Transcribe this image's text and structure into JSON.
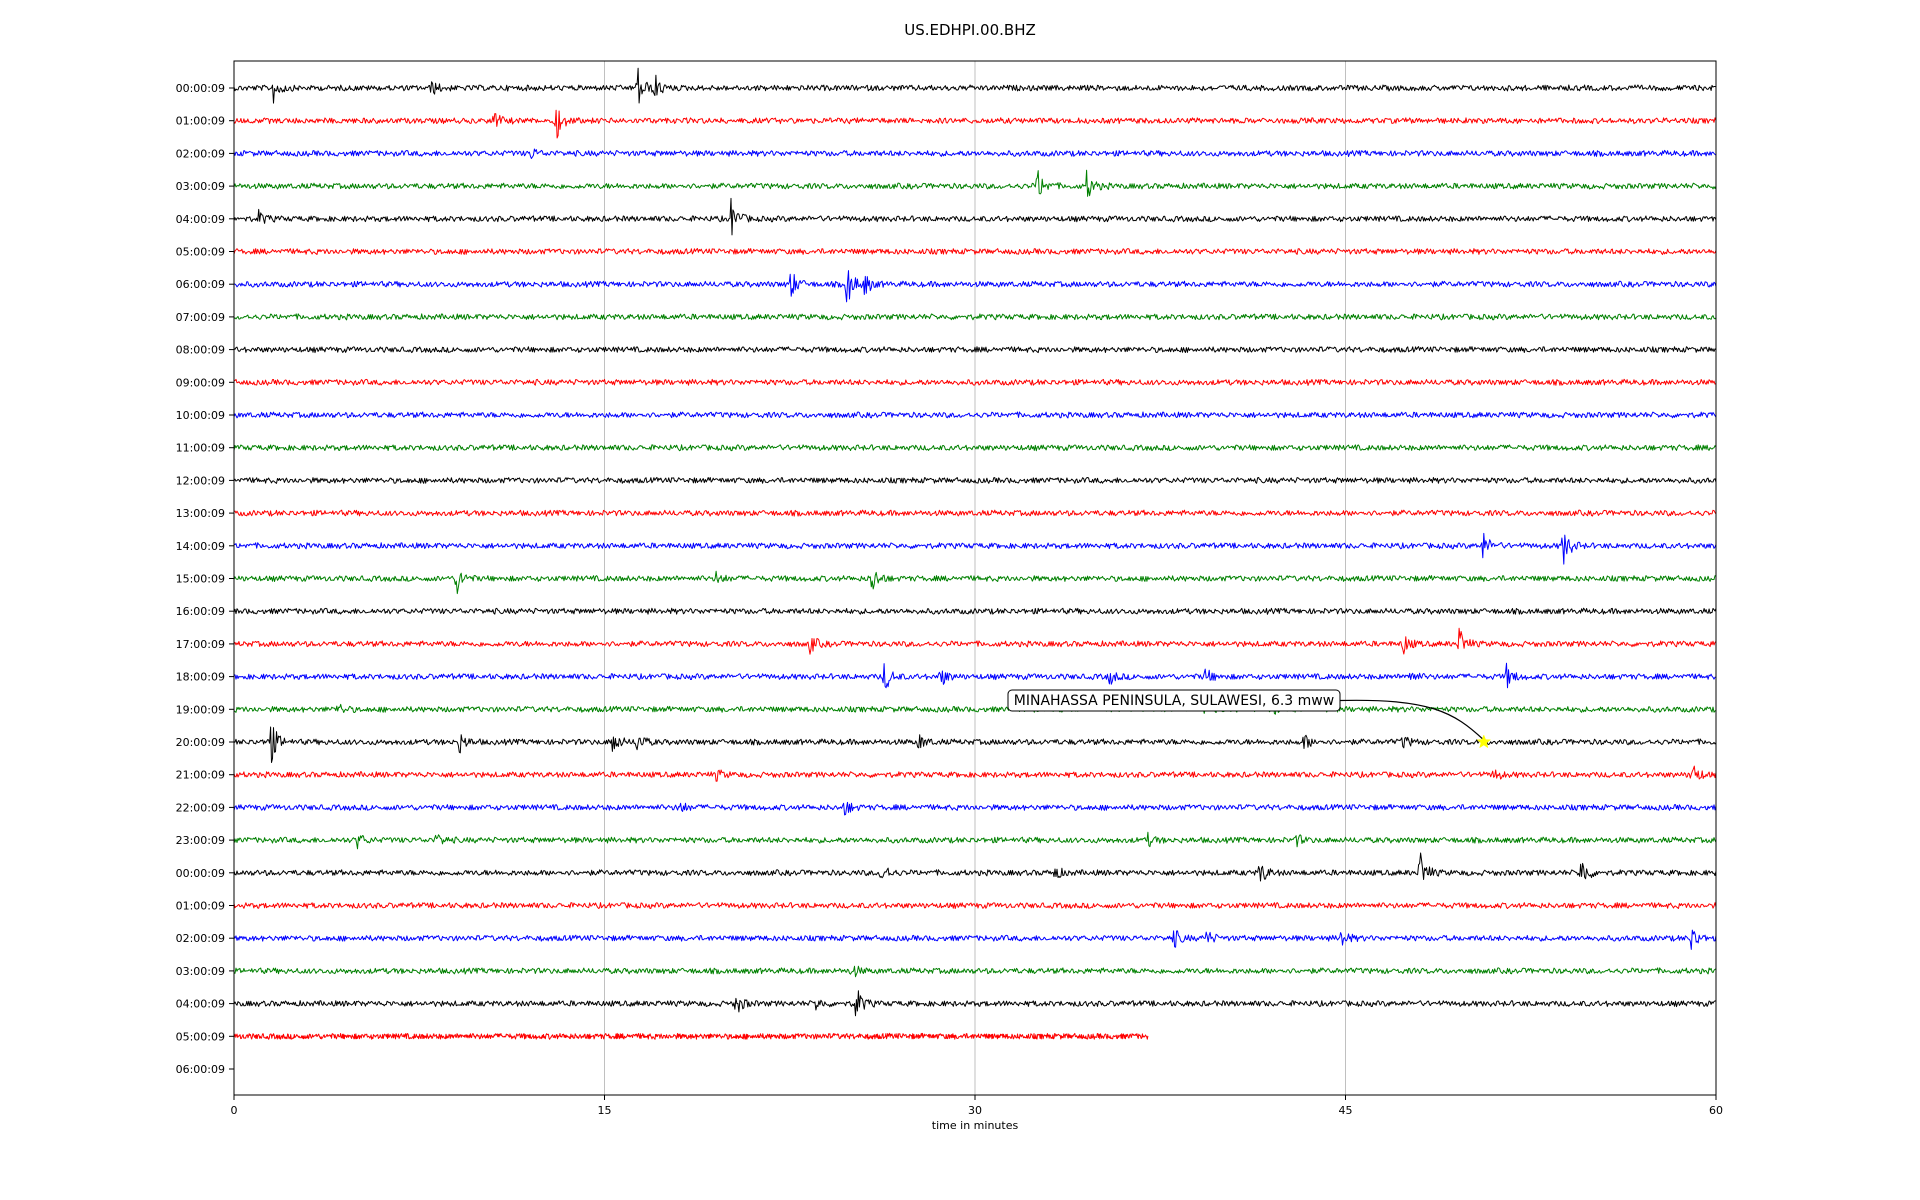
{
  "chart_data": {
    "type": "line",
    "title": "US.EDHPI.00.BHZ",
    "xlabel": "time in minutes",
    "ylabel": "",
    "xlim": [
      0,
      60
    ],
    "x_ticks": [
      0,
      15,
      30,
      45,
      60
    ],
    "x_grid": true,
    "y_grid": false,
    "row_labels": [
      "00:00:09",
      "01:00:09",
      "02:00:09",
      "03:00:09",
      "04:00:09",
      "05:00:09",
      "06:00:09",
      "07:00:09",
      "08:00:09",
      "09:00:09",
      "10:00:09",
      "11:00:09",
      "12:00:09",
      "13:00:09",
      "14:00:09",
      "15:00:09",
      "16:00:09",
      "17:00:09",
      "18:00:09",
      "19:00:09",
      "20:00:09",
      "21:00:09",
      "22:00:09",
      "23:00:09",
      "00:00:09",
      "01:00:09",
      "02:00:09",
      "03:00:09",
      "04:00:09",
      "05:00:09",
      "06:00:09"
    ],
    "trace_colors": [
      "#000000",
      "#ff0000",
      "#0000ff",
      "#008000"
    ],
    "traces": [
      {
        "row": 0,
        "end": 60,
        "events": [
          {
            "t": 1.6,
            "a": 1.0
          },
          {
            "t": 8.0,
            "a": 0.5
          },
          {
            "t": 16.3,
            "a": 1.8
          },
          {
            "t": 17.0,
            "a": 1.0
          }
        ]
      },
      {
        "row": 1,
        "end": 60,
        "events": [
          {
            "t": 10.5,
            "a": 0.7
          },
          {
            "t": 13.0,
            "a": 1.6
          }
        ]
      },
      {
        "row": 2,
        "end": 60,
        "events": [
          {
            "t": 12.0,
            "a": 0.4
          }
        ]
      },
      {
        "row": 3,
        "end": 60,
        "events": [
          {
            "t": 32.5,
            "a": 1.3
          },
          {
            "t": 34.5,
            "a": 1.1
          }
        ]
      },
      {
        "row": 4,
        "end": 60,
        "events": [
          {
            "t": 1.0,
            "a": 0.5
          },
          {
            "t": 20.1,
            "a": 1.5
          }
        ]
      },
      {
        "row": 5,
        "end": 60,
        "events": []
      },
      {
        "row": 6,
        "end": 60,
        "events": [
          {
            "t": 22.5,
            "a": 1.2
          },
          {
            "t": 24.8,
            "a": 1.6
          },
          {
            "t": 25.5,
            "a": 0.8
          }
        ]
      },
      {
        "row": 7,
        "end": 60,
        "events": []
      },
      {
        "row": 8,
        "end": 60,
        "events": []
      },
      {
        "row": 9,
        "end": 60,
        "events": []
      },
      {
        "row": 10,
        "end": 60,
        "events": []
      },
      {
        "row": 11,
        "end": 60,
        "events": []
      },
      {
        "row": 12,
        "end": 60,
        "events": []
      },
      {
        "row": 13,
        "end": 60,
        "events": []
      },
      {
        "row": 14,
        "end": 60,
        "events": [
          {
            "t": 50.5,
            "a": 1.2
          },
          {
            "t": 53.8,
            "a": 1.4
          }
        ]
      },
      {
        "row": 15,
        "end": 60,
        "events": [
          {
            "t": 9.0,
            "a": 1.1
          },
          {
            "t": 19.5,
            "a": 0.5
          },
          {
            "t": 25.8,
            "a": 1.1
          }
        ]
      },
      {
        "row": 16,
        "end": 60,
        "events": []
      },
      {
        "row": 17,
        "end": 60,
        "events": [
          {
            "t": 23.3,
            "a": 0.7
          },
          {
            "t": 47.3,
            "a": 0.8
          },
          {
            "t": 49.6,
            "a": 1.1
          }
        ]
      },
      {
        "row": 18,
        "end": 60,
        "events": [
          {
            "t": 26.3,
            "a": 1.2
          },
          {
            "t": 28.6,
            "a": 0.7
          },
          {
            "t": 35.4,
            "a": 0.6
          },
          {
            "t": 39.3,
            "a": 0.6
          },
          {
            "t": 47.5,
            "a": 0.6
          },
          {
            "t": 51.5,
            "a": 0.9
          }
        ]
      },
      {
        "row": 19,
        "end": 60,
        "events": [
          {
            "t": 4.2,
            "a": 0.4
          },
          {
            "t": 39.0,
            "a": 0.7
          },
          {
            "t": 42.0,
            "a": 0.5
          }
        ]
      },
      {
        "row": 20,
        "end": 60,
        "events": [
          {
            "t": 1.4,
            "a": 2.3
          },
          {
            "t": 9.1,
            "a": 0.8
          },
          {
            "t": 15.3,
            "a": 0.9
          },
          {
            "t": 16.3,
            "a": 0.8
          },
          {
            "t": 27.7,
            "a": 0.6
          },
          {
            "t": 43.3,
            "a": 0.6
          },
          {
            "t": 47.3,
            "a": 0.5
          }
        ]
      },
      {
        "row": 21,
        "end": 60,
        "events": [
          {
            "t": 19.5,
            "a": 0.4
          },
          {
            "t": 51.0,
            "a": 0.4
          },
          {
            "t": 59.0,
            "a": 1.0
          }
        ]
      },
      {
        "row": 22,
        "end": 60,
        "events": [
          {
            "t": 18.0,
            "a": 0.5
          },
          {
            "t": 24.7,
            "a": 0.6
          }
        ]
      },
      {
        "row": 23,
        "end": 60,
        "events": [
          {
            "t": 5.0,
            "a": 0.5
          },
          {
            "t": 8.2,
            "a": 0.5
          },
          {
            "t": 37.0,
            "a": 0.4
          },
          {
            "t": 43.0,
            "a": 0.4
          }
        ]
      },
      {
        "row": 24,
        "end": 60,
        "events": [
          {
            "t": 26.2,
            "a": 0.8
          },
          {
            "t": 33.2,
            "a": 0.5
          },
          {
            "t": 41.5,
            "a": 1.0
          },
          {
            "t": 48.0,
            "a": 1.6
          },
          {
            "t": 54.5,
            "a": 1.3
          }
        ]
      },
      {
        "row": 25,
        "end": 60,
        "events": []
      },
      {
        "row": 26,
        "end": 60,
        "events": [
          {
            "t": 38.0,
            "a": 0.8
          },
          {
            "t": 39.3,
            "a": 0.7
          },
          {
            "t": 44.8,
            "a": 0.7
          },
          {
            "t": 59.0,
            "a": 0.9
          }
        ]
      },
      {
        "row": 27,
        "end": 60,
        "events": [
          {
            "t": 25.0,
            "a": 0.5
          }
        ]
      },
      {
        "row": 28,
        "end": 60,
        "events": [
          {
            "t": 20.3,
            "a": 0.9
          },
          {
            "t": 23.5,
            "a": 0.5
          },
          {
            "t": 25.1,
            "a": 1.7
          }
        ]
      },
      {
        "row": 29,
        "end": 37,
        "events": []
      }
    ],
    "annotation": {
      "text": "MINAHASSA PENINSULA, SULAWESI, 6.3 mww",
      "row": 20,
      "t": 50.6,
      "marker_color": "#ffff00"
    }
  }
}
